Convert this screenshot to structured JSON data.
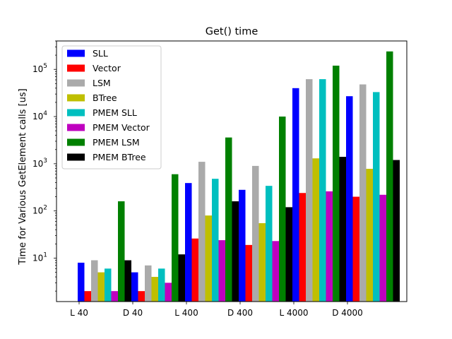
{
  "chart_data": {
    "type": "bar",
    "title": "Get() time",
    "xlabel": "",
    "ylabel": "Time for Various GetElement calls [us]",
    "yscale": "log",
    "ylim": [
      1.2,
      400000
    ],
    "ytick_values": [
      10,
      100,
      1000,
      10000,
      100000
    ],
    "ytick_labels": [
      {
        "base": "10",
        "exp": "1"
      },
      {
        "base": "10",
        "exp": "2"
      },
      {
        "base": "10",
        "exp": "3"
      },
      {
        "base": "10",
        "exp": "4"
      },
      {
        "base": "10",
        "exp": "5"
      }
    ],
    "categories": [
      "L 40",
      "D 40",
      "L 400",
      "D 400",
      "L 4000",
      "D 4000"
    ],
    "legend_position": "upper-left",
    "grid": false,
    "series": [
      {
        "name": "SLL",
        "color": "#0000ff",
        "values": [
          8,
          5,
          390,
          280,
          40000,
          27000
        ]
      },
      {
        "name": "Vector",
        "color": "#ff0000",
        "values": [
          2,
          2,
          26,
          19,
          240,
          200
        ]
      },
      {
        "name": "LSM",
        "color": "#aaaaaa",
        "values": [
          9,
          7,
          1100,
          900,
          62000,
          48000
        ]
      },
      {
        "name": "BTree",
        "color": "#bfbf00",
        "values": [
          5,
          4,
          80,
          55,
          1300,
          780
        ]
      },
      {
        "name": "PMEM SLL",
        "color": "#00bfbf",
        "values": [
          6,
          6,
          480,
          340,
          62000,
          33000
        ]
      },
      {
        "name": "PMEM Vector",
        "color": "#bf00bf",
        "values": [
          2,
          3,
          24,
          23,
          260,
          220
        ]
      },
      {
        "name": "PMEM LSM",
        "color": "#008000",
        "values": [
          160,
          600,
          3600,
          10000,
          120000,
          240000
        ]
      },
      {
        "name": "PMEM BTree",
        "color": "#000000",
        "values": [
          9,
          12,
          160,
          120,
          1400,
          1200
        ]
      }
    ]
  }
}
